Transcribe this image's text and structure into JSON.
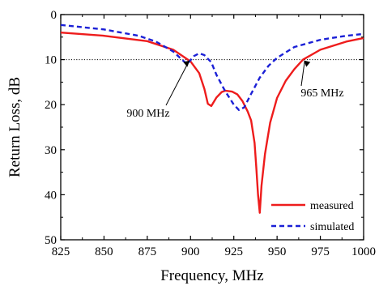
{
  "chart_data": {
    "type": "line",
    "xlabel": "Frequency, MHz",
    "ylabel": "Return Loss, dB",
    "xlim": [
      825,
      1000
    ],
    "ylim": [
      0,
      50
    ],
    "y_inverted": true,
    "x_ticks": [
      825,
      850,
      875,
      900,
      925,
      950,
      975,
      1000
    ],
    "y_ticks": [
      0,
      10,
      20,
      30,
      40,
      50
    ],
    "reference_line": {
      "y": 10,
      "style": "dotted"
    },
    "legend_position": "bottom-right",
    "annotations": [
      {
        "text": "900 MHz",
        "x": 900,
        "y": 10
      },
      {
        "text": "965 MHz",
        "x": 965,
        "y": 10
      }
    ],
    "series": [
      {
        "name": "measured",
        "color": "#ee1c1c",
        "dash": "solid",
        "points": [
          [
            825,
            4.0
          ],
          [
            850,
            4.7
          ],
          [
            875,
            5.9
          ],
          [
            890,
            7.8
          ],
          [
            900,
            10.4
          ],
          [
            905,
            13.0
          ],
          [
            908,
            16.5
          ],
          [
            910,
            19.8
          ],
          [
            912,
            20.3
          ],
          [
            915,
            18.4
          ],
          [
            918,
            17.2
          ],
          [
            920,
            16.9
          ],
          [
            924,
            17.1
          ],
          [
            927,
            17.7
          ],
          [
            930,
            19.2
          ],
          [
            933,
            21.5
          ],
          [
            935,
            23.5
          ],
          [
            937,
            28.5
          ],
          [
            938,
            34.0
          ],
          [
            939,
            40.0
          ],
          [
            940,
            44.0
          ],
          [
            941,
            38.0
          ],
          [
            943,
            31.0
          ],
          [
            946,
            24.0
          ],
          [
            950,
            18.5
          ],
          [
            955,
            14.7
          ],
          [
            960,
            12.1
          ],
          [
            965,
            10.0
          ],
          [
            975,
            7.8
          ],
          [
            990,
            6.0
          ],
          [
            1000,
            5.2
          ]
        ]
      },
      {
        "name": "simulated",
        "color": "#1b20d6",
        "dash": "dashed",
        "points": [
          [
            825,
            2.3
          ],
          [
            850,
            3.3
          ],
          [
            870,
            4.7
          ],
          [
            880,
            6.0
          ],
          [
            890,
            8.2
          ],
          [
            895,
            10.0
          ],
          [
            898,
            11.0
          ],
          [
            902,
            9.2
          ],
          [
            905,
            8.6
          ],
          [
            908,
            9.0
          ],
          [
            912,
            10.6
          ],
          [
            915,
            13.4
          ],
          [
            920,
            17.0
          ],
          [
            925,
            20.0
          ],
          [
            928,
            21.2
          ],
          [
            931,
            20.6
          ],
          [
            935,
            17.6
          ],
          [
            940,
            14.0
          ],
          [
            945,
            11.4
          ],
          [
            950,
            9.6
          ],
          [
            960,
            7.2
          ],
          [
            975,
            5.6
          ],
          [
            990,
            4.7
          ],
          [
            1000,
            4.3
          ]
        ]
      }
    ]
  }
}
